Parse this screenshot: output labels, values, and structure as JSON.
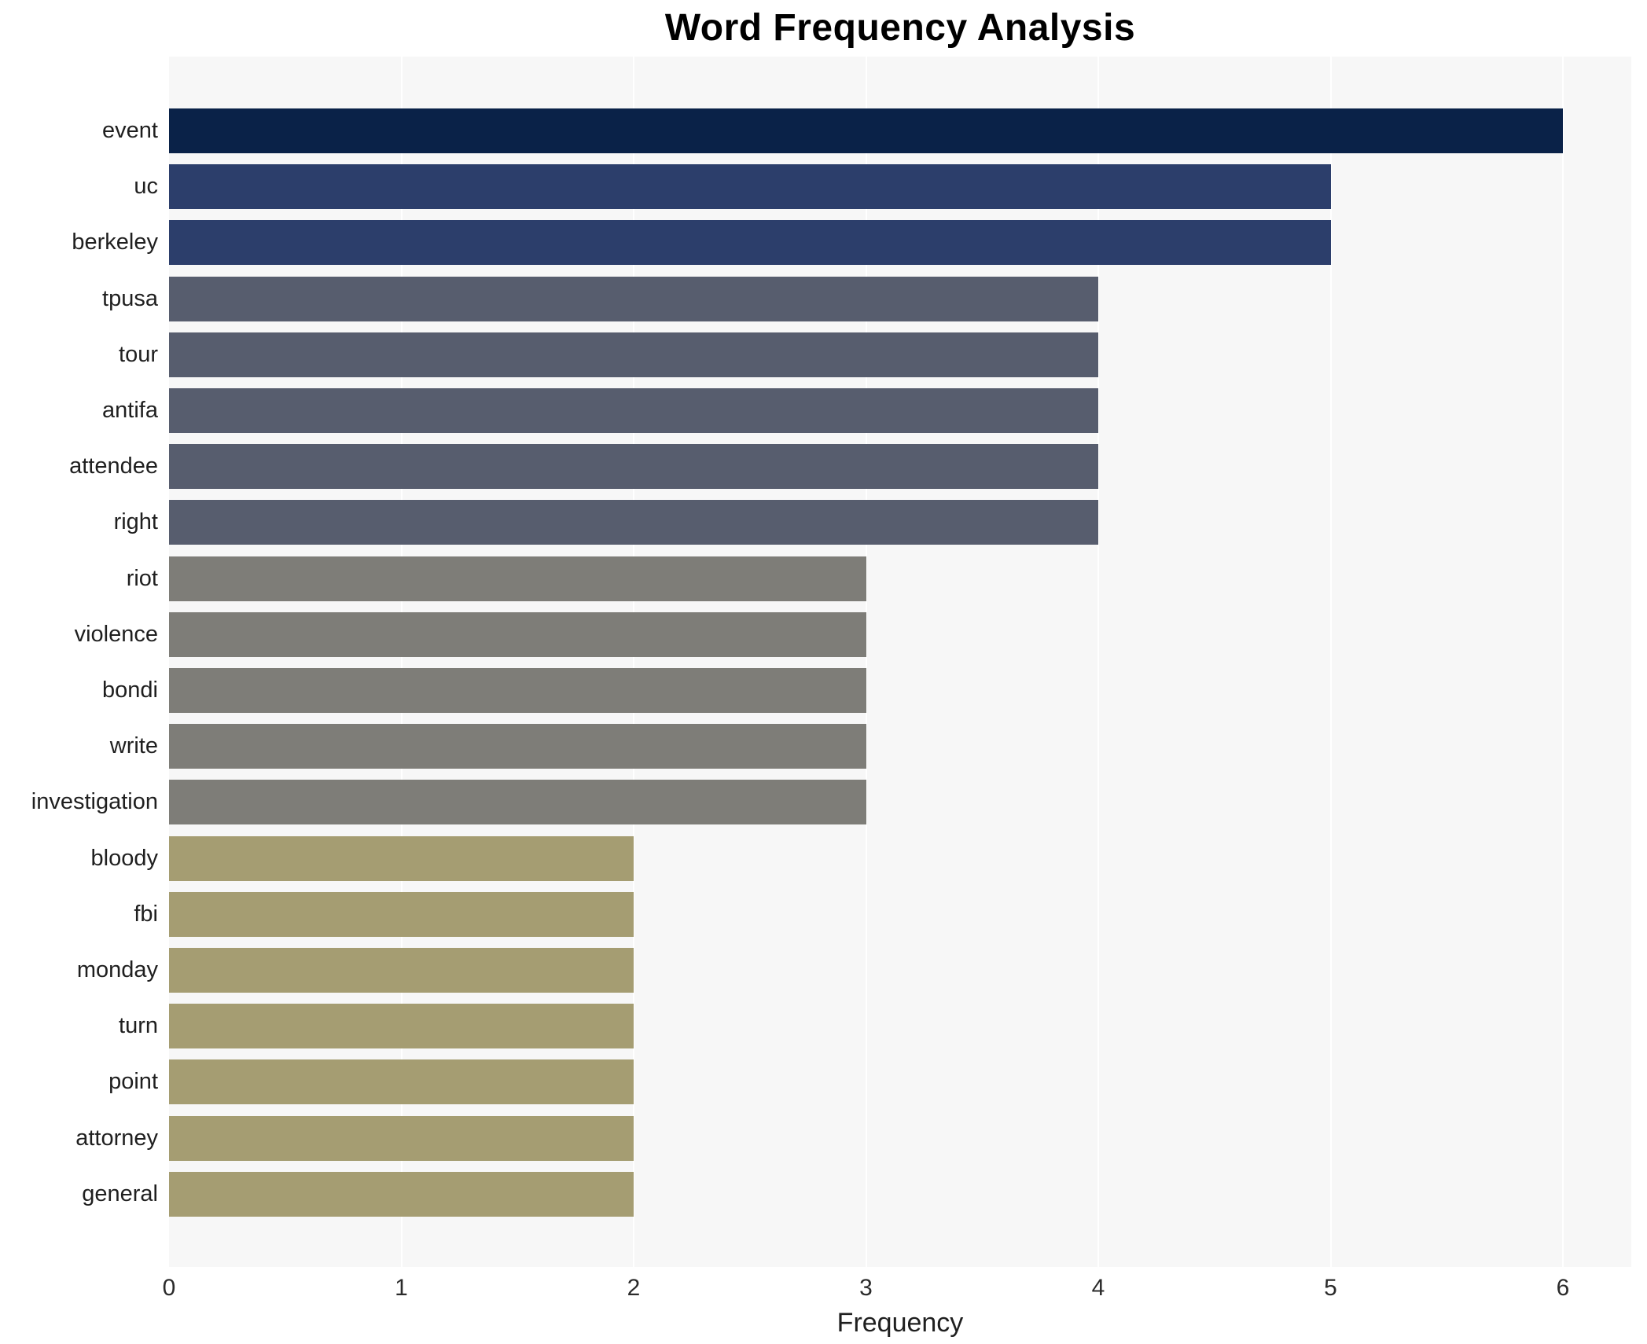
{
  "title": "Word Frequency Analysis",
  "x_axis_title": "Frequency",
  "colors": {
    "figure_background": "#ffffff",
    "plot_background": "#f7f7f7",
    "gridline": "#ffffff",
    "band_darkest_navy": "#0a2248",
    "band_navy": "#2c3e6b",
    "band_slate": "#575d6e",
    "band_gray": "#7e7d78",
    "band_khaki": "#a59d72",
    "label_text": "#1f1f1f",
    "title_text": "#000000"
  },
  "chart_data": {
    "type": "bar",
    "orientation": "horizontal",
    "title": "Word Frequency Analysis",
    "xlabel": "Frequency",
    "ylabel": "",
    "xlim": [
      0,
      6.29
    ],
    "x_ticks": [
      0,
      1,
      2,
      3,
      4,
      5,
      6
    ],
    "grid": true,
    "legend": false,
    "categories": [
      "event",
      "uc",
      "berkeley",
      "tpusa",
      "tour",
      "antifa",
      "attendee",
      "right",
      "riot",
      "violence",
      "bondi",
      "write",
      "investigation",
      "bloody",
      "fbi",
      "monday",
      "turn",
      "point",
      "attorney",
      "general"
    ],
    "values": [
      6,
      5,
      5,
      4,
      4,
      4,
      4,
      4,
      3,
      3,
      3,
      3,
      3,
      2,
      2,
      2,
      2,
      2,
      2,
      2
    ],
    "bar_colors": [
      "#0a2248",
      "#2c3e6b",
      "#2c3e6b",
      "#575d6e",
      "#575d6e",
      "#575d6e",
      "#575d6e",
      "#575d6e",
      "#7e7d78",
      "#7e7d78",
      "#7e7d78",
      "#7e7d78",
      "#7e7d78",
      "#a59d72",
      "#a59d72",
      "#a59d72",
      "#a59d72",
      "#a59d72",
      "#a59d72",
      "#a59d72"
    ]
  }
}
